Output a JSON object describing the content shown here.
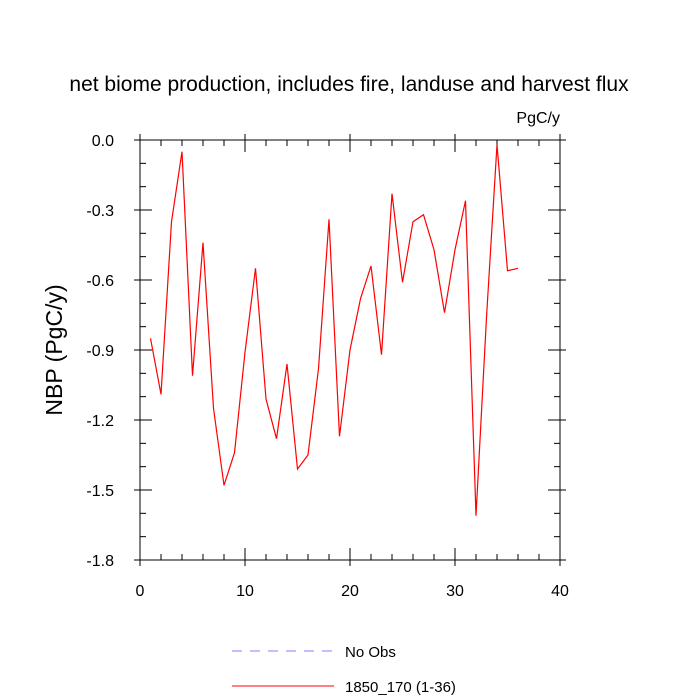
{
  "chart_data": {
    "type": "line",
    "title": "net biome production, includes fire, landuse and harvest flux",
    "units": "PgC/y",
    "ylabel": "NBP  (PgC/y)",
    "xlabel": "",
    "xlim": [
      0,
      40
    ],
    "ylim": [
      -1.8,
      0.0
    ],
    "x_ticks": [
      0,
      10,
      20,
      30,
      40
    ],
    "y_ticks": [
      0.0,
      -0.3,
      -0.6,
      -0.9,
      -1.2,
      -1.5,
      -1.8
    ],
    "x_tick_labels": [
      "0",
      "10",
      "20",
      "30",
      "40"
    ],
    "y_tick_labels": [
      "0.0",
      "-0.3",
      "-0.6",
      "-0.9",
      "-1.2",
      "-1.5",
      "-1.8"
    ],
    "grid": false,
    "legend_position": "bottom-center",
    "legend": [
      {
        "label": "No Obs",
        "color": "#8080ff",
        "style": "dashed"
      },
      {
        "label": "1850_170 (1-36)",
        "color": "#ff0000",
        "style": "solid"
      }
    ],
    "series": [
      {
        "name": "1850_170 (1-36)",
        "color": "#ff0000",
        "x": [
          1,
          2,
          3,
          4,
          5,
          6,
          7,
          8,
          9,
          10,
          11,
          12,
          13,
          14,
          15,
          16,
          17,
          18,
          19,
          20,
          21,
          22,
          23,
          24,
          25,
          26,
          27,
          28,
          29,
          30,
          31,
          32,
          33,
          34,
          35,
          36
        ],
        "values": [
          -0.85,
          -1.09,
          -0.35,
          -0.05,
          -1.01,
          -0.44,
          -1.15,
          -1.48,
          -1.34,
          -0.91,
          -0.55,
          -1.11,
          -1.28,
          -0.96,
          -1.41,
          -1.35,
          -0.98,
          -0.34,
          -1.27,
          -0.9,
          -0.68,
          -0.54,
          -0.92,
          -0.23,
          -0.61,
          -0.35,
          -0.32,
          -0.47,
          -0.74,
          -0.47,
          -0.26,
          -1.61,
          -0.76,
          -0.02,
          -0.56,
          -0.55
        ]
      }
    ]
  }
}
